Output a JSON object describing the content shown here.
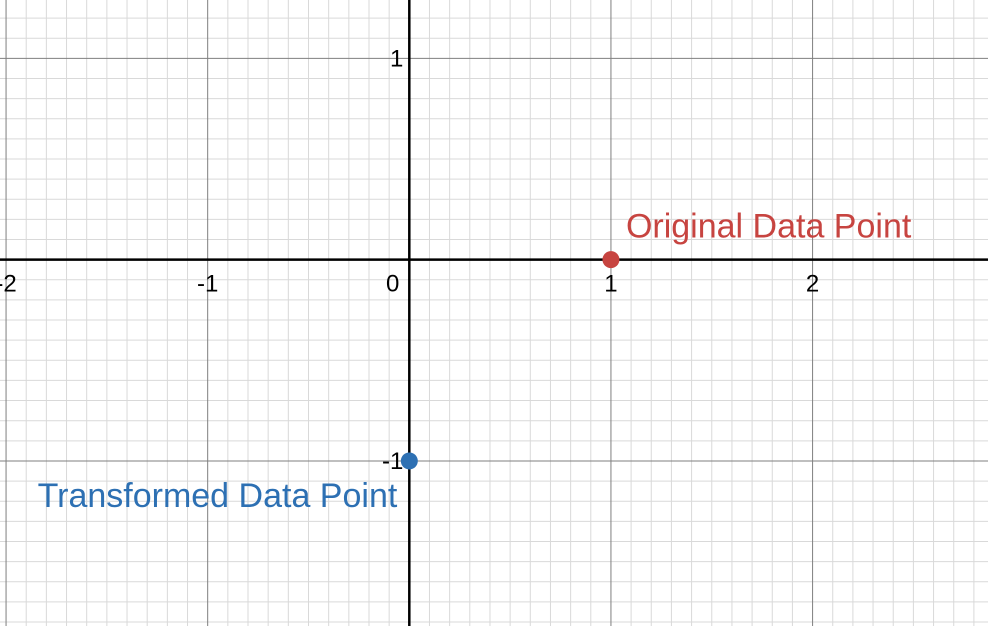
{
  "chart_data": {
    "type": "scatter",
    "xlim": [
      -2.03,
      2.87
    ],
    "ylim": [
      -1.82,
      1.29
    ],
    "grid": true,
    "minor_grid_step": 0.1,
    "major_grid_step": 1,
    "x_ticks": [
      {
        "value": -2,
        "label": "-2"
      },
      {
        "value": -1,
        "label": "-1"
      },
      {
        "value": 0,
        "label": "0"
      },
      {
        "value": 1,
        "label": "1"
      },
      {
        "value": 2,
        "label": "2"
      }
    ],
    "y_ticks": [
      {
        "value": 1,
        "label": "1"
      },
      {
        "value": -1,
        "label": "-1"
      }
    ],
    "points": [
      {
        "x": 1,
        "y": 0,
        "label": "Original Data Point",
        "color": "#c74440",
        "label_anchor": "right-above"
      },
      {
        "x": 0,
        "y": -1,
        "label": "Transformed Data Point",
        "color": "#2d70b3",
        "label_anchor": "left-below"
      }
    ],
    "colors": {
      "axis": "#000000",
      "major_grid": "#7f7f7f",
      "minor_grid": "#d9d9d9"
    }
  }
}
